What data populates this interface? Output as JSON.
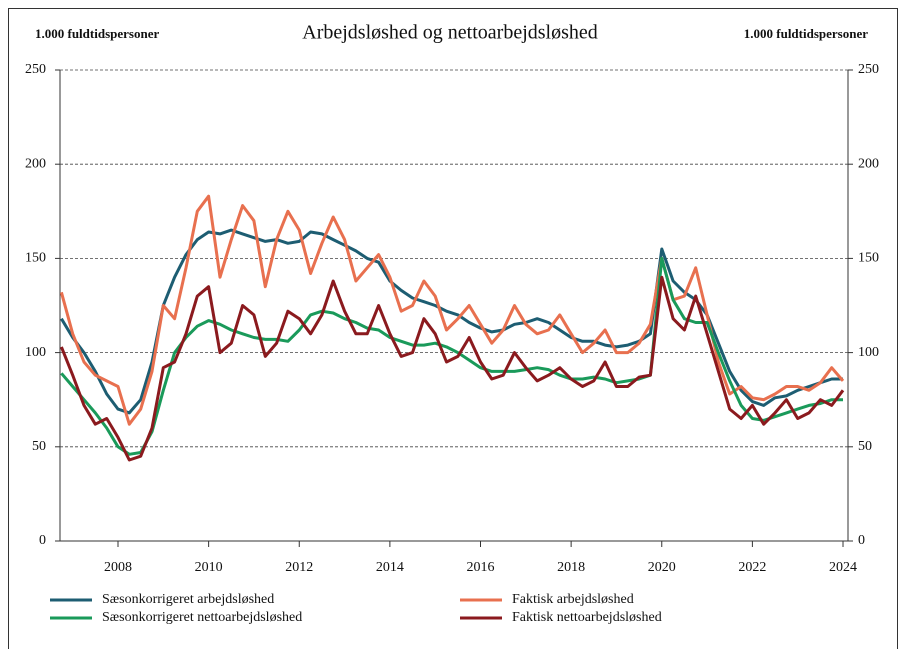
{
  "chart_data": {
    "type": "line",
    "title": "Arbejdsløshed og nettoarbejdsløshed",
    "y_label": "1.000 fuldtidspersoner",
    "y2_label": "1.000 fuldtidspersoner",
    "x": [
      2006.75,
      2007.0,
      2007.25,
      2007.5,
      2007.75,
      2008.0,
      2008.25,
      2008.5,
      2008.75,
      2009.0,
      2009.25,
      2009.5,
      2009.75,
      2010.0,
      2010.25,
      2010.5,
      2010.75,
      2011.0,
      2011.25,
      2011.5,
      2011.75,
      2012.0,
      2012.25,
      2012.5,
      2012.75,
      2013.0,
      2013.25,
      2013.5,
      2013.75,
      2014.0,
      2014.25,
      2014.5,
      2014.75,
      2015.0,
      2015.25,
      2015.5,
      2015.75,
      2016.0,
      2016.25,
      2016.5,
      2016.75,
      2017.0,
      2017.25,
      2017.5,
      2017.75,
      2018.0,
      2018.25,
      2018.5,
      2018.75,
      2019.0,
      2019.25,
      2019.5,
      2019.75,
      2020.0,
      2020.25,
      2020.5,
      2020.75,
      2021.0,
      2021.25,
      2021.5,
      2021.75,
      2022.0,
      2022.25,
      2022.5,
      2022.75,
      2023.0,
      2023.25,
      2023.5,
      2023.75,
      2024.0
    ],
    "series": [
      {
        "name": "Sæsonkorrigeret arbejdsløshed",
        "color": "#1d5d72",
        "values": [
          118,
          108,
          100,
          90,
          78,
          70,
          68,
          75,
          95,
          125,
          140,
          152,
          160,
          164,
          163,
          165,
          163,
          161,
          159,
          160,
          158,
          159,
          164,
          163,
          160,
          157,
          154,
          150,
          148,
          138,
          133,
          129,
          127,
          125,
          122,
          120,
          116,
          113,
          111,
          112,
          115,
          116,
          118,
          116,
          112,
          108,
          106,
          106,
          104,
          103,
          104,
          106,
          110,
          155,
          138,
          132,
          128,
          120,
          105,
          90,
          80,
          74,
          72,
          76,
          77,
          80,
          82,
          84,
          86,
          86
        ]
      },
      {
        "name": "Faktisk arbejdsløshed",
        "color": "#e8704f",
        "values": [
          132,
          110,
          95,
          88,
          85,
          82,
          62,
          70,
          90,
          125,
          118,
          145,
          175,
          183,
          140,
          160,
          178,
          170,
          135,
          160,
          175,
          165,
          142,
          158,
          172,
          160,
          138,
          145,
          152,
          140,
          122,
          125,
          138,
          130,
          112,
          118,
          125,
          115,
          105,
          112,
          125,
          115,
          110,
          112,
          120,
          110,
          100,
          105,
          112,
          100,
          100,
          105,
          115,
          150,
          128,
          130,
          145,
          120,
          95,
          78,
          82,
          76,
          75,
          78,
          82,
          82,
          80,
          84,
          92,
          85
        ]
      },
      {
        "name": "Sæsonkorrigeret nettoarbejdsløshed",
        "color": "#1a9a5a",
        "values": [
          89,
          82,
          75,
          68,
          60,
          50,
          46,
          47,
          58,
          80,
          100,
          108,
          114,
          117,
          115,
          112,
          110,
          108,
          107,
          107,
          106,
          112,
          120,
          122,
          121,
          118,
          116,
          113,
          112,
          108,
          106,
          104,
          104,
          105,
          103,
          100,
          96,
          92,
          90,
          90,
          90,
          91,
          92,
          91,
          88,
          86,
          86,
          87,
          86,
          84,
          85,
          86,
          88,
          150,
          128,
          118,
          116,
          116,
          100,
          85,
          72,
          65,
          64,
          66,
          68,
          70,
          72,
          73,
          75,
          75
        ]
      },
      {
        "name": "Faktisk nettoarbejdsløshed",
        "color": "#8b1a1e",
        "values": [
          103,
          88,
          72,
          62,
          65,
          55,
          43,
          45,
          60,
          92,
          95,
          110,
          130,
          135,
          100,
          105,
          125,
          120,
          98,
          105,
          122,
          118,
          110,
          120,
          138,
          122,
          110,
          110,
          125,
          110,
          98,
          100,
          118,
          110,
          95,
          98,
          108,
          95,
          86,
          88,
          100,
          92,
          85,
          88,
          92,
          86,
          82,
          85,
          95,
          82,
          82,
          87,
          88,
          140,
          118,
          112,
          130,
          110,
          90,
          70,
          65,
          72,
          62,
          68,
          75,
          65,
          68,
          75,
          72,
          80
        ]
      }
    ],
    "xlim": [
      2006.72,
      2024.11
    ],
    "xticks": [
      2008,
      2010,
      2012,
      2014,
      2016,
      2018,
      2020,
      2022,
      2024
    ],
    "ylim": [
      0,
      250
    ],
    "yticks": [
      0,
      50,
      100,
      150,
      200,
      250
    ],
    "y2lim": [
      0,
      250
    ],
    "y2ticks": [
      0,
      50,
      100,
      150,
      200,
      250
    ],
    "grid": true,
    "legend": "bottom"
  }
}
